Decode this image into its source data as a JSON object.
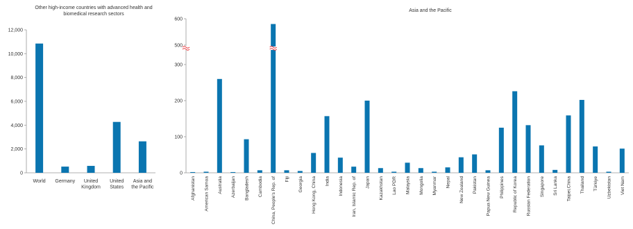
{
  "colors": {
    "bar": "#0a75b0",
    "axis": "#999999",
    "grid": "#d9d9d9",
    "text": "#333333",
    "break": "#e8343a"
  },
  "chart_data": [
    {
      "type": "bar",
      "title": "Other high-income countries with advanced health and biomedical research sectors",
      "categories": [
        "World",
        "Germany",
        "United Kingdom",
        "United States",
        "Asia and the Pacific"
      ],
      "category_lines": [
        [
          "World"
        ],
        [
          "Germany"
        ],
        [
          "United",
          "Kingdom"
        ],
        [
          "United",
          "States"
        ],
        [
          "Asia and",
          "the Pacific"
        ]
      ],
      "values": [
        10850,
        520,
        580,
        4270,
        2640
      ],
      "ylim": [
        0,
        12000
      ],
      "yticks": [
        0,
        2000,
        4000,
        6000,
        8000,
        10000,
        12000
      ],
      "ytick_labels": [
        "0",
        "2,000",
        "4,000",
        "6,000",
        "8,000",
        "10,000",
        "12,000"
      ],
      "grid": false
    },
    {
      "type": "bar",
      "title": "Asia and the Pacific",
      "categories": [
        "Afghanistan",
        "American Samoa",
        "Australia",
        "Azerbaijan",
        "Bangladesh",
        "Cambodia",
        "China, People's Rep. of",
        "Fiji",
        "Georgia",
        "Hong Kong, China",
        "India",
        "Indonesia",
        "Iran, Islamic Rep. of",
        "Japan",
        "Kazakhstan",
        "Lao PDR",
        "Malaysia",
        "Mongolia",
        "Myanmar",
        "Nepal",
        "New Zealand",
        "Pakistan",
        "Papua New Guinea",
        "Philippines",
        "Republic of Korea",
        "Russian Federation",
        "Singapore",
        "Sri Lanka",
        "Taipei,China",
        "Thailand",
        "Türkiye",
        "Uzbekistan",
        "Viet Nam"
      ],
      "values": [
        2,
        3,
        260,
        2,
        93,
        7,
        580,
        7,
        5,
        55,
        157,
        42,
        17,
        200,
        13,
        3,
        28,
        13,
        3,
        15,
        43,
        51,
        7,
        125,
        226,
        132,
        76,
        8,
        159,
        202,
        73,
        3,
        67
      ],
      "ylim": [
        0,
        600
      ],
      "yticks": [
        0,
        100,
        200,
        300,
        500,
        600
      ],
      "ytick_labels": [
        "0",
        "100",
        "200",
        "300",
        "500",
        "600"
      ],
      "axis_break": [
        300,
        500
      ],
      "grid": false
    }
  ]
}
